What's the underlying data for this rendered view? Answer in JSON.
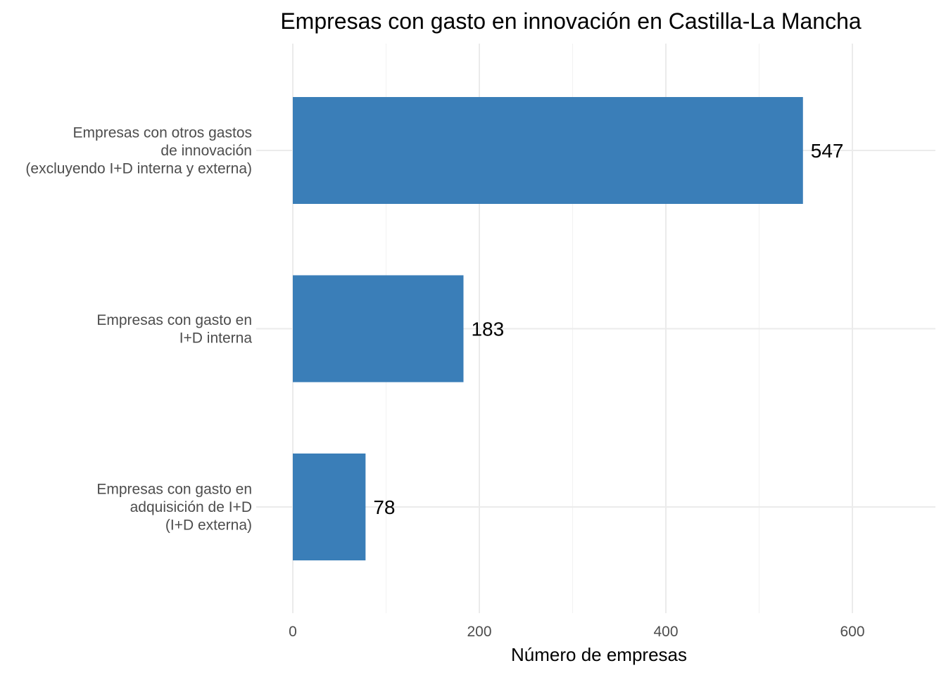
{
  "chart_data": {
    "type": "bar",
    "orientation": "horizontal",
    "title": "Empresas con gasto en innovación en Castilla-La Mancha",
    "xlabel": "Número de empresas",
    "ylabel": "",
    "xlim": [
      0,
      687
    ],
    "xticks": [
      0,
      200,
      400,
      600
    ],
    "xtick_labels": [
      "0",
      "200",
      "400",
      "600"
    ],
    "grid": true,
    "legend": "none",
    "bar_color": "#3A7EB8",
    "categories": [
      [
        "Empresas con otros gastos",
        "de innovación",
        "(excluyendo I+D interna y externa)"
      ],
      [
        "Empresas con gasto en",
        "I+D interna"
      ],
      [
        "Empresas con gasto en",
        "adquisición de I+D",
        "(I+D externa)"
      ]
    ],
    "values": [
      547,
      183,
      78
    ],
    "data_labels": [
      "547",
      "183",
      "78"
    ]
  }
}
